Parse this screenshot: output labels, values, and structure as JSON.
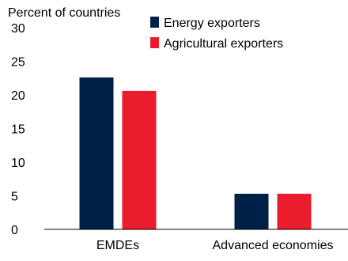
{
  "chart_data": {
    "type": "bar",
    "title": "",
    "ylabel": "Percent of countries",
    "xlabel": "",
    "categories": [
      "EMDEs",
      "Advanced economies"
    ],
    "series": [
      {
        "name": "Energy exporters",
        "values": [
          22.6,
          5.3
        ],
        "color": "#002147"
      },
      {
        "name": "Agricultural exporters",
        "values": [
          20.6,
          5.3
        ],
        "color": "#eb1c2d"
      }
    ],
    "ylim": [
      0,
      30
    ],
    "yticks": [
      "0",
      "5",
      "10",
      "15",
      "20",
      "25",
      "30"
    ],
    "grid": false,
    "legend": "top-right"
  }
}
